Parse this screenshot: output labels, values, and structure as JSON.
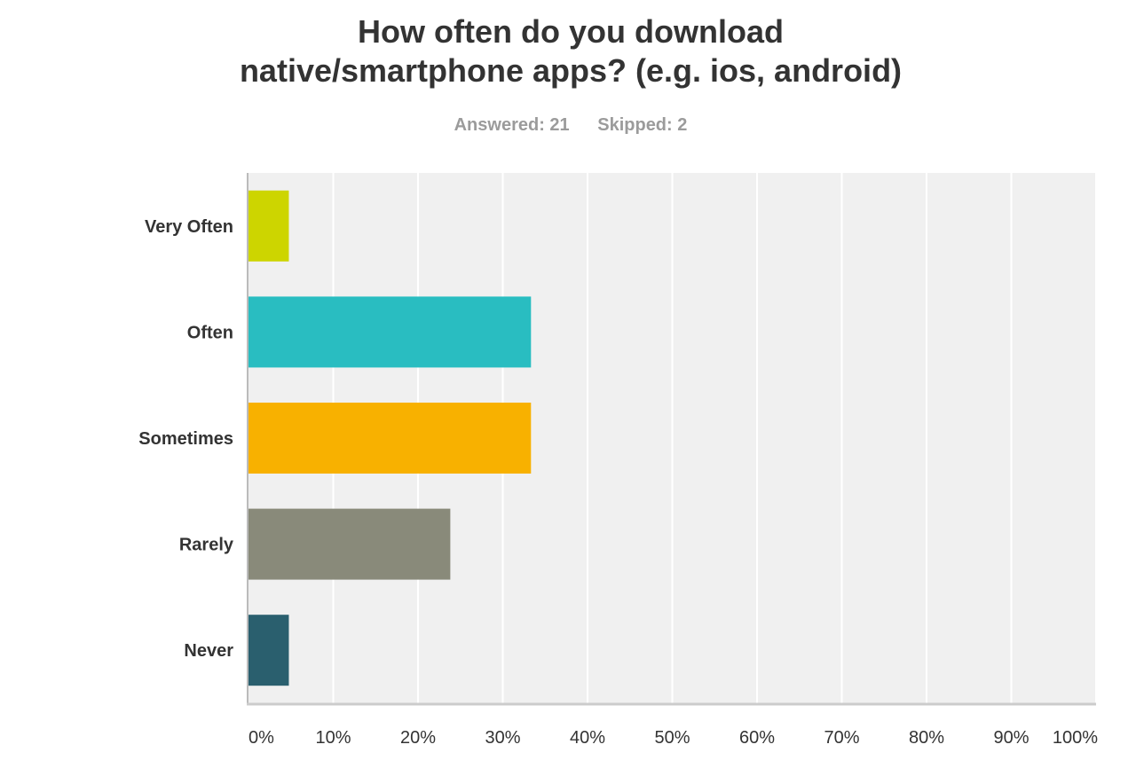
{
  "survey": {
    "answered_label": "Answered: 21",
    "skipped_label": "Skipped: 2"
  },
  "chart_data": {
    "type": "bar",
    "orientation": "horizontal",
    "title_lines": [
      "How often do you download",
      "native/smartphone apps? (e.g. ios, android)"
    ],
    "categories": [
      "Very Often",
      "Often",
      "Sometimes",
      "Rarely",
      "Never"
    ],
    "values": [
      4.76,
      33.33,
      33.33,
      23.81,
      4.76
    ],
    "colors": [
      "#cdd500",
      "#29bdc1",
      "#f8b100",
      "#898a7a",
      "#2a5f6e"
    ],
    "xlim": [
      0,
      100
    ],
    "xticks": [
      0,
      10,
      20,
      30,
      40,
      50,
      60,
      70,
      80,
      90,
      100
    ],
    "xtick_labels": [
      "0%",
      "10%",
      "20%",
      "30%",
      "40%",
      "50%",
      "60%",
      "70%",
      "80%",
      "90%",
      "100%"
    ],
    "grid": true,
    "legend": "none",
    "plot_background": "#f0f0f0",
    "grid_color": "#ffffff"
  }
}
